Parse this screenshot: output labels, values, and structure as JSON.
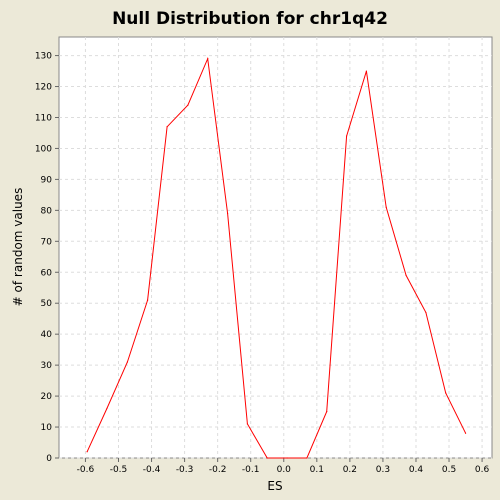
{
  "chart_data": {
    "type": "line",
    "title": "Null Distribution for chr1q42",
    "xlabel": "ES",
    "ylabel": "# of random values",
    "xlim": [
      -0.68,
      0.63
    ],
    "ylim": [
      0,
      136
    ],
    "x_ticks": [
      "-0.6",
      "-0.5",
      "-0.4",
      "-0.3",
      "-0.2",
      "-0.1",
      "0.0",
      "0.1",
      "0.2",
      "0.3",
      "0.4",
      "0.5",
      "0.6"
    ],
    "y_ticks": [
      "0",
      "10",
      "20",
      "30",
      "40",
      "50",
      "60",
      "70",
      "80",
      "90",
      "100",
      "110",
      "120",
      "130"
    ],
    "grid": true,
    "series": [
      {
        "color": "#ff0000",
        "x": [
          -0.595,
          -0.535,
          -0.473,
          -0.412,
          -0.353,
          -0.29,
          -0.23,
          -0.17,
          -0.11,
          -0.05,
          0.01,
          0.07,
          0.13,
          0.19,
          0.25,
          0.31,
          0.37,
          0.43,
          0.49,
          0.55
        ],
        "y": [
          2,
          16,
          31,
          51,
          107,
          114,
          129,
          79,
          11,
          0,
          0,
          0,
          15,
          104,
          125,
          81,
          59,
          47,
          21,
          8
        ]
      }
    ]
  }
}
